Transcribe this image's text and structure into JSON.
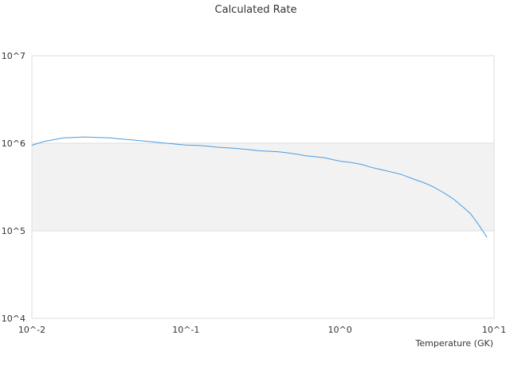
{
  "chart_data": {
    "type": "line",
    "title": "Calculated Rate",
    "xlabel": "Temperature (GK)",
    "ylabel": "",
    "x_scale": "log",
    "y_scale": "log",
    "xlim": [
      0.01,
      10
    ],
    "ylim": [
      10000,
      10000000
    ],
    "x_ticks": [
      "10^-2",
      "10^-1",
      "10^0",
      "10^1"
    ],
    "y_ticks": [
      "10^4",
      "10^5",
      "10^6",
      "10^7"
    ],
    "grid": true,
    "banded_background": true,
    "colors": {
      "line": "#4a9be0",
      "band": "#f2f2f2",
      "grid": "#dddddd"
    },
    "series": [
      {
        "name": "",
        "x": [
          0.01,
          0.012,
          0.014,
          0.016,
          0.018,
          0.02,
          0.022,
          0.025,
          0.028,
          0.032,
          0.036,
          0.04,
          0.045,
          0.05,
          0.06,
          0.07,
          0.08,
          0.09,
          0.1,
          0.12,
          0.14,
          0.16,
          0.18,
          0.2,
          0.25,
          0.3,
          0.35,
          0.4,
          0.45,
          0.5,
          0.6,
          0.7,
          0.8,
          0.9,
          1.0,
          1.2,
          1.4,
          1.6,
          1.8,
          2.0,
          2.5,
          3.0,
          3.5,
          4.0,
          4.5,
          5.0,
          5.5,
          6.0,
          6.5,
          7.0,
          7.5,
          8.0,
          8.5,
          9.0
        ],
        "values": [
          950000,
          1050000,
          1100000,
          1150000,
          1160000,
          1170000,
          1180000,
          1170000,
          1160000,
          1150000,
          1130000,
          1110000,
          1090000,
          1070000,
          1040000,
          1010000,
          990000,
          970000,
          955000,
          945000,
          925000,
          900000,
          890000,
          880000,
          850000,
          820000,
          810000,
          800000,
          780000,
          760000,
          720000,
          700000,
          680000,
          650000,
          625000,
          600000,
          570000,
          530000,
          505000,
          485000,
          440000,
          390000,
          355000,
          320000,
          285000,
          255000,
          228000,
          200000,
          178000,
          158000,
          135000,
          115000,
          98000,
          84000
        ]
      }
    ]
  }
}
